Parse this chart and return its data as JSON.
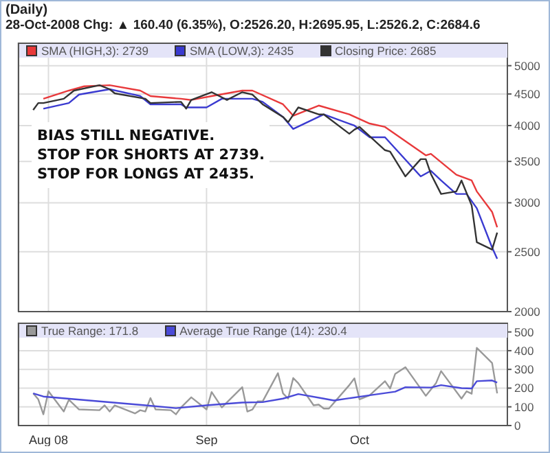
{
  "chart_data": [
    {
      "type": "line",
      "title": "(Daily)",
      "subtitle": "28-Oct-2008 Chg: ▲ 160.40 (6.35%), O:2526.20, H:2695.95, L:2526.2, C:2684.6",
      "annotations": [
        "BIAS STILL NEGATIVE.",
        "STOP FOR SHORTS AT 2739.",
        "STOP FOR LONGS AT 2435."
      ],
      "log": "y",
      "grid": true,
      "legend": "top left",
      "tick_labels": "y",
      "xlim": [
        "2008-07-26",
        "2008-10-30"
      ],
      "xticks": [
        {
          "value": "2008-08-01",
          "label": null
        },
        {
          "value": "2008-09-01",
          "label": null
        },
        {
          "value": "2008-10-01",
          "label": null
        }
      ],
      "ylim": [
        2000,
        5450
      ],
      "yticks": [
        2000,
        2500,
        3000,
        3500,
        4000,
        4500,
        5000
      ],
      "series": [
        {
          "name": "SMA (HIGH,3): 2739",
          "color": "#e8393b",
          "x": [
            "2008-07-31",
            "2008-08-05",
            "2008-08-08",
            "2008-08-13",
            "2008-08-19",
            "2008-08-21",
            "2008-08-27",
            "2008-08-29",
            "2008-09-02",
            "2008-09-08",
            "2008-09-10",
            "2008-09-16",
            "2008-09-18",
            "2008-09-23",
            "2008-09-29",
            "2008-10-03",
            "2008-10-06",
            "2008-10-14",
            "2008-10-15",
            "2008-10-20",
            "2008-10-23",
            "2008-10-24",
            "2008-10-27",
            "2008-10-28"
          ],
          "values": [
            4420,
            4557,
            4630,
            4650,
            4557,
            4465,
            4420,
            4400,
            4465,
            4557,
            4557,
            4330,
            4150,
            4310,
            4170,
            4030,
            3980,
            3580,
            3600,
            3330,
            3260,
            3130,
            2900,
            2739
          ]
        },
        {
          "name": "SMA (LOW,3): 2435",
          "color": "#3a3ad0",
          "x": [
            "2008-07-31",
            "2008-08-05",
            "2008-08-07",
            "2008-08-13",
            "2008-08-19",
            "2008-08-21",
            "2008-08-27",
            "2008-08-28",
            "2008-09-01",
            "2008-09-04",
            "2008-09-10",
            "2008-09-12",
            "2008-09-16",
            "2008-09-18",
            "2008-09-24",
            "2008-09-30",
            "2008-10-03",
            "2008-10-06",
            "2008-10-13",
            "2008-10-15",
            "2008-10-17",
            "2008-10-20",
            "2008-10-22",
            "2008-10-24",
            "2008-10-27",
            "2008-10-28"
          ],
          "values": [
            4260,
            4350,
            4490,
            4580,
            4465,
            4330,
            4330,
            4280,
            4280,
            4420,
            4420,
            4370,
            4130,
            3950,
            4170,
            4000,
            3830,
            3830,
            3310,
            3380,
            3260,
            3100,
            3100,
            2940,
            2540,
            2435
          ]
        },
        {
          "name": "Closing Price: 2685",
          "color": "#333333",
          "x": [
            "2008-07-29",
            "2008-07-30",
            "2008-07-31",
            "2008-08-04",
            "2008-08-06",
            "2008-08-11",
            "2008-08-13",
            "2008-08-14",
            "2008-08-20",
            "2008-08-21",
            "2008-08-27",
            "2008-08-28",
            "2008-08-29",
            "2008-09-02",
            "2008-09-05",
            "2008-09-08",
            "2008-09-10",
            "2008-09-12",
            "2008-09-16",
            "2008-09-17",
            "2008-09-19",
            "2008-09-23",
            "2008-09-24",
            "2008-09-29",
            "2008-09-30",
            "2008-10-01",
            "2008-10-06",
            "2008-10-07",
            "2008-10-10",
            "2008-10-13",
            "2008-10-14",
            "2008-10-15",
            "2008-10-17",
            "2008-10-20",
            "2008-10-21",
            "2008-10-23",
            "2008-10-24",
            "2008-10-27",
            "2008-10-28"
          ],
          "values": [
            4240,
            4350,
            4350,
            4420,
            4557,
            4650,
            4580,
            4510,
            4420,
            4350,
            4370,
            4260,
            4400,
            4530,
            4400,
            4530,
            4490,
            4330,
            4130,
            4050,
            4280,
            4170,
            4170,
            3880,
            3940,
            3980,
            3650,
            3630,
            3310,
            3530,
            3530,
            3340,
            3100,
            3130,
            3260,
            2970,
            2590,
            2520,
            2685
          ]
        }
      ]
    },
    {
      "type": "line",
      "grid": true,
      "legend": "top left",
      "xlim": [
        "2008-07-26",
        "2008-10-30"
      ],
      "xticks": [
        {
          "value": "2008-08-01",
          "label": "Aug 08"
        },
        {
          "value": "2008-09-01",
          "label": "Sep"
        },
        {
          "value": "2008-10-01",
          "label": "Oct"
        }
      ],
      "ylim": [
        0,
        550
      ],
      "yticks": [
        0,
        100,
        200,
        300,
        400,
        500
      ],
      "series": [
        {
          "name": "True Range: 171.8",
          "color": "#999999",
          "x": [
            "2008-07-29",
            "2008-07-30",
            "2008-07-31",
            "2008-08-01",
            "2008-08-04",
            "2008-08-05",
            "2008-08-07",
            "2008-08-11",
            "2008-08-12",
            "2008-08-13",
            "2008-08-14",
            "2008-08-18",
            "2008-08-19",
            "2008-08-20",
            "2008-08-21",
            "2008-08-22",
            "2008-08-25",
            "2008-08-26",
            "2008-08-27",
            "2008-08-29",
            "2008-09-01",
            "2008-09-02",
            "2008-09-04",
            "2008-09-08",
            "2008-09-09",
            "2008-09-10",
            "2008-09-11",
            "2008-09-12",
            "2008-09-15",
            "2008-09-16",
            "2008-09-17",
            "2008-09-18",
            "2008-09-19",
            "2008-09-22",
            "2008-09-23",
            "2008-09-24",
            "2008-09-25",
            "2008-09-29",
            "2008-09-30",
            "2008-10-01",
            "2008-10-03",
            "2008-10-06",
            "2008-10-07",
            "2008-10-08",
            "2008-10-10",
            "2008-10-14",
            "2008-10-16",
            "2008-10-17",
            "2008-10-21",
            "2008-10-22",
            "2008-10-23",
            "2008-10-24",
            "2008-10-27",
            "2008-10-28"
          ],
          "values": [
            172,
            140,
            60,
            183,
            75,
            138,
            86,
            82,
            108,
            75,
            108,
            65,
            82,
            75,
            147,
            86,
            82,
            60,
            97,
            151,
            86,
            179,
            97,
            205,
            75,
            86,
            129,
            129,
            280,
            172,
            144,
            254,
            226,
            108,
            112,
            91,
            91,
            216,
            252,
            140,
            162,
            237,
            198,
            276,
            312,
            159,
            226,
            291,
            144,
            183,
            170,
            415,
            334,
            172
          ]
        },
        {
          "name": "Average True Range (14): 230.4",
          "color": "#4a4ad8",
          "x": [
            "2008-07-29",
            "2008-07-31",
            "2008-08-11",
            "2008-08-20",
            "2008-08-26",
            "2008-09-01",
            "2008-09-08",
            "2008-09-12",
            "2008-09-16",
            "2008-09-19",
            "2008-09-24",
            "2008-09-26",
            "2008-10-03",
            "2008-10-08",
            "2008-10-10",
            "2008-10-15",
            "2008-10-17",
            "2008-10-21",
            "2008-10-23",
            "2008-10-24",
            "2008-10-27",
            "2008-10-28"
          ],
          "values": [
            172,
            155,
            129,
            108,
            93,
            108,
            123,
            125,
            144,
            168,
            144,
            134,
            162,
            181,
            205,
            203,
            216,
            200,
            198,
            237,
            241,
            230
          ]
        }
      ]
    }
  ]
}
